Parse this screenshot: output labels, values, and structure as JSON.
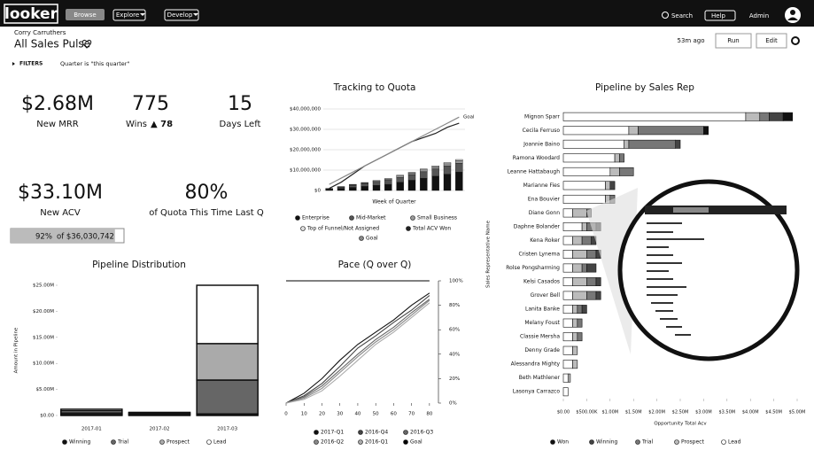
{
  "nav": {
    "logo": "looker",
    "items": [
      "Browse",
      "Explore",
      "Develop"
    ],
    "search": "Search",
    "help": "Help",
    "admin": "Admin"
  },
  "header": {
    "user": "Corry Carruthers",
    "title": "All Sales Pulse",
    "age": "53m ago",
    "run": "Run",
    "edit": "Edit"
  },
  "filters": {
    "label": "FILTERS",
    "value": "Quarter is \"this quarter\""
  },
  "kpis": [
    {
      "value": "$2.68M",
      "label": "New MRR"
    },
    {
      "value": "775",
      "label": "Wins",
      "change": "▲ 78"
    },
    {
      "value": "15",
      "label": "Days Left"
    },
    {
      "value": "$33.10M",
      "label": "New ACV"
    },
    {
      "value": "80%",
      "label": "of Quota This Time Last Q"
    }
  ],
  "progress": {
    "value": 92,
    "value_label": "92%",
    "text": "of $36,030,742"
  },
  "chart_data": [
    {
      "type": "combo",
      "title": "Tracking to Quota",
      "x_label": "Week of Quarter",
      "categories": [
        null,
        null,
        null,
        null,
        null,
        null,
        null,
        null,
        null,
        null,
        null,
        null
      ],
      "ylim": [
        0,
        40000000
      ],
      "yticks": [
        {
          "value": 0,
          "label": "$0"
        },
        {
          "value": 10000000,
          "label": "$10,000,000"
        },
        {
          "value": 20000000,
          "label": "$20,000,000"
        },
        {
          "value": 30000000,
          "label": "$30,000,000"
        },
        {
          "value": 40000000,
          "label": "$40,000,000"
        }
      ],
      "grid": true,
      "series": [
        {
          "name": "Enterprise",
          "type": "bar",
          "color": "#111111",
          "values": [
            500000,
            1000000,
            1500000,
            2000000,
            2500000,
            3000000,
            4000000,
            5000000,
            6000000,
            7000000,
            8000000,
            9000000
          ]
        },
        {
          "name": "Mid-Market",
          "type": "bar",
          "color": "#555555",
          "values": [
            300000,
            600000,
            1000000,
            1300000,
            1600000,
            2000000,
            2400000,
            2800000,
            3200000,
            3600000,
            4000000,
            4400000
          ]
        },
        {
          "name": "Small Business",
          "type": "bar",
          "color": "#999999",
          "values": [
            100000,
            200000,
            300000,
            400000,
            500000,
            600000,
            700000,
            800000,
            900000,
            1000000,
            1100000,
            1200000
          ]
        },
        {
          "name": "Top of Funnel/Not Assigned",
          "type": "bar",
          "color": "#dddddd",
          "values": [
            100000,
            100000,
            200000,
            200000,
            300000,
            300000,
            400000,
            400000,
            500000,
            500000,
            600000,
            600000
          ]
        },
        {
          "name": "Total ACV Won",
          "type": "line",
          "color": "#222222",
          "values": [
            1000000,
            4000000,
            8000000,
            12000000,
            15000000,
            18000000,
            21000000,
            24000000,
            26000000,
            28000000,
            31000000,
            33000000
          ]
        },
        {
          "name": "Goal",
          "type": "line",
          "color": "#888888",
          "values": [
            3000000,
            6000000,
            9000000,
            12000000,
            15000000,
            18000000,
            21000000,
            24000000,
            27000000,
            30000000,
            33000000,
            36000000
          ]
        }
      ]
    },
    {
      "type": "stacked-bar",
      "title": "Pipeline Distribution",
      "y_label": "Amount in Pipeline",
      "categories": [
        "2017-01",
        "2017-02",
        "2017-03"
      ],
      "ylim": [
        0,
        25000000
      ],
      "yticks": [
        {
          "value": 0,
          "label": "$0.00"
        },
        {
          "value": 5000000,
          "label": "$5.00M"
        },
        {
          "value": 10000000,
          "label": "$10.00M"
        },
        {
          "value": 15000000,
          "label": "$15.00M"
        },
        {
          "value": 20000000,
          "label": "$20.00M"
        },
        {
          "value": 25000000,
          "label": "$25.00M"
        }
      ],
      "series": [
        {
          "name": "Winning",
          "color": "#111111",
          "values": [
            200000,
            100000,
            300000
          ]
        },
        {
          "name": "Trial",
          "color": "#666666",
          "values": [
            300000,
            200000,
            6500000
          ]
        },
        {
          "name": "Prospect",
          "color": "#aaaaaa",
          "values": [
            400000,
            200000,
            7000000
          ]
        },
        {
          "name": "Lead",
          "color": "#ffffff",
          "values": [
            300000,
            100000,
            11200000
          ]
        }
      ]
    },
    {
      "type": "line",
      "title": "Pace (Q over Q)",
      "xlim": [
        0,
        85
      ],
      "xticks": [
        0,
        10,
        20,
        30,
        40,
        50,
        60,
        70,
        80
      ],
      "ylim": [
        0,
        100
      ],
      "yticks": [
        {
          "value": 0,
          "label": "0%"
        },
        {
          "value": 20,
          "label": "20%"
        },
        {
          "value": 40,
          "label": "40%"
        },
        {
          "value": 60,
          "label": "60%"
        },
        {
          "value": 80,
          "label": "80%"
        },
        {
          "value": 100,
          "label": "100%"
        }
      ],
      "x": [
        0,
        10,
        20,
        30,
        40,
        50,
        60,
        70,
        80
      ],
      "series": [
        {
          "name": "2017-Q1",
          "color": "#111111",
          "values": [
            0,
            8,
            20,
            35,
            48,
            58,
            68,
            80,
            90
          ]
        },
        {
          "name": "2016-Q4",
          "color": "#444444",
          "values": [
            0,
            6,
            16,
            30,
            45,
            55,
            66,
            76,
            88
          ]
        },
        {
          "name": "2016-Q3",
          "color": "#666666",
          "values": [
            0,
            5,
            14,
            27,
            40,
            52,
            62,
            74,
            85
          ]
        },
        {
          "name": "2016-Q2",
          "color": "#888888",
          "values": [
            0,
            4,
            12,
            25,
            38,
            50,
            60,
            72,
            84
          ]
        },
        {
          "name": "2016-Q1",
          "color": "#aaaaaa",
          "values": [
            0,
            3,
            10,
            22,
            35,
            48,
            58,
            70,
            82
          ]
        },
        {
          "name": "Goal",
          "color": "#000000",
          "values": [
            100,
            100,
            100,
            100,
            100,
            100,
            100,
            100,
            100
          ]
        }
      ]
    },
    {
      "type": "hbar",
      "title": "Pipeline by Sales Rep",
      "x_label": "Opportunity Total Acv",
      "y_label": "Sales Representative Name",
      "categories": [
        "Mignon Sparr",
        "Cecila Ferruso",
        "Joannie Baino",
        "Ramona Woodard",
        "Leanne Hattabaugh",
        "Marianne Fies",
        "Ena Bouvier",
        "Diane Gonn",
        "Daphne Bolander",
        "Kena Roker",
        "Cristen Lynema",
        "Rolse Pongsharming",
        "Kelsi Casados",
        "Grover Bell",
        "Lanita Banke",
        "Melany Foust",
        "Classie Mersha",
        "Denny Grade",
        "Alessandra Mighty",
        "Beth Mathlener",
        "Lasonya Carrazco"
      ],
      "xlim": [
        0,
        5000000
      ],
      "xticks": [
        {
          "value": 0,
          "label": "$0.00"
        },
        {
          "value": 500000,
          "label": "$500.00K"
        },
        {
          "value": 1000000,
          "label": "$1.00M"
        },
        {
          "value": 1500000,
          "label": "$1.50M"
        },
        {
          "value": 2000000,
          "label": "$2.00M"
        },
        {
          "value": 2500000,
          "label": "$2.50M"
        },
        {
          "value": 3000000,
          "label": "$3.00M"
        },
        {
          "value": 3500000,
          "label": "$3.50M"
        },
        {
          "value": 4000000,
          "label": "$4.00M"
        },
        {
          "value": 4500000,
          "label": "$4.50M"
        },
        {
          "value": 5000000,
          "label": "$5.00M"
        }
      ],
      "series": [
        {
          "name": "Won",
          "color": "#111111",
          "values": [
            200000,
            100000,
            0,
            0,
            0,
            0,
            0,
            0,
            0,
            0,
            0,
            0,
            0,
            0,
            0,
            0,
            0,
            0,
            0,
            0,
            0
          ]
        },
        {
          "name": "Winning",
          "color": "#444444",
          "values": [
            300000,
            0,
            100000,
            0,
            0,
            100000,
            0,
            0,
            100000,
            100000,
            100000,
            200000,
            100000,
            100000,
            100000,
            0,
            0,
            0,
            0,
            0,
            0
          ]
        },
        {
          "name": "Trial",
          "color": "#777777",
          "values": [
            200000,
            1400000,
            1000000,
            100000,
            300000,
            0,
            100000,
            100000,
            200000,
            200000,
            200000,
            100000,
            200000,
            200000,
            100000,
            100000,
            100000,
            0,
            0,
            0,
            0
          ]
        },
        {
          "name": "Prospect",
          "color": "#bbbbbb",
          "values": [
            300000,
            200000,
            100000,
            100000,
            200000,
            100000,
            100000,
            300000,
            100000,
            200000,
            300000,
            200000,
            300000,
            300000,
            100000,
            100000,
            100000,
            100000,
            100000,
            50000,
            0
          ]
        },
        {
          "name": "Lead",
          "color": "#ffffff",
          "values": [
            3900000,
            1400000,
            1300000,
            1100000,
            1000000,
            900000,
            900000,
            200000,
            400000,
            200000,
            200000,
            200000,
            200000,
            200000,
            200000,
            200000,
            200000,
            200000,
            200000,
            100000,
            100000
          ]
        }
      ]
    }
  ]
}
